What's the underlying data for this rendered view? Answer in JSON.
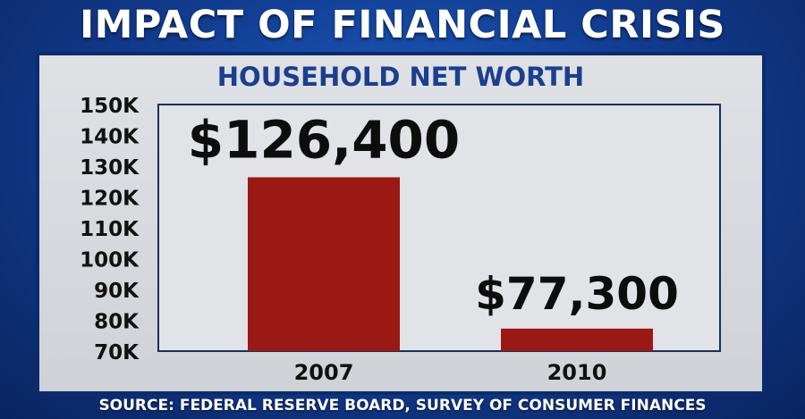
{
  "headline": "IMPACT OF FINANCIAL CRISIS",
  "source": "SOURCE: FEDERAL RESERVE BOARD, SURVEY OF CONSUMER FINANCES",
  "colors": {
    "bar": "#9b1914",
    "panel": "#d8dadf",
    "title": "#1b3f8f"
  },
  "chart_data": {
    "type": "bar",
    "title": "HOUSEHOLD NET WORTH",
    "xlabel": "",
    "ylabel": "",
    "categories": [
      "2007",
      "2010"
    ],
    "values": [
      126400,
      77300
    ],
    "data_labels": [
      "$126,400",
      "$77,300"
    ],
    "ylim": [
      70000,
      150000
    ],
    "yticks": [
      70000,
      80000,
      90000,
      100000,
      110000,
      120000,
      130000,
      140000,
      150000
    ],
    "ytick_labels": [
      "70K",
      "80K",
      "90K",
      "100K",
      "110K",
      "120K",
      "130K",
      "140K",
      "150K"
    ],
    "grid": false
  }
}
